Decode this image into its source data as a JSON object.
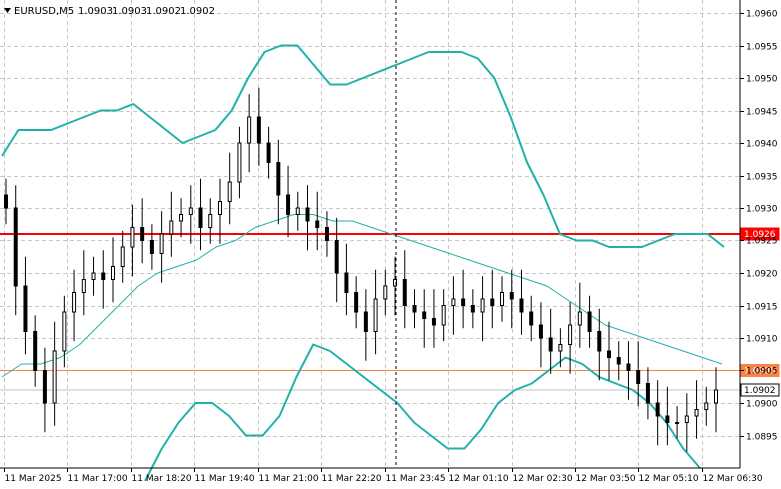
{
  "header": {
    "symbol": "EURUSD,M5",
    "open": "1.0903",
    "high": "1.0903",
    "low": "1.0902",
    "close": "1.0902"
  },
  "colors": {
    "background": "#ffffff",
    "grid": "#c8c8c8",
    "candle": "#000000",
    "bollinger": "#20b2aa",
    "resistance_line": "#ff0000",
    "level_line": "#ff8040",
    "bid_line": "#c0c0c0"
  },
  "chart_data": {
    "type": "candlestick",
    "y_range": [
      1.089,
      1.0962
    ],
    "y_ticks": [
      "1.0960",
      "1.0955",
      "1.0950",
      "1.0945",
      "1.0940",
      "1.0935",
      "1.0930",
      "1.0925",
      "1.0920",
      "1.0915",
      "1.0910",
      "1.0905",
      "1.0900",
      "1.0895"
    ],
    "x_ticks": [
      "11 Mar 2025",
      "11 Mar 17:00",
      "11 Mar 18:20",
      "11 Mar 19:40",
      "11 Mar 21:00",
      "11 Mar 22:20",
      "11 Mar 23:45",
      "12 Mar 01:10",
      "12 Mar 02:30",
      "12 Mar 03:50",
      "12 Mar 05:10",
      "12 Mar 06:30"
    ],
    "horizontal_levels": [
      {
        "label": "1.0926",
        "value": 1.0926,
        "style": "resistance"
      },
      {
        "label": "1.0905",
        "value": 1.0905,
        "style": "level"
      },
      {
        "label": "1.0902",
        "value": 1.0902,
        "style": "bid"
      }
    ],
    "series": [
      {
        "name": "upper",
        "values": [
          1.0938,
          1.0942,
          1.0942,
          1.0942,
          1.0943,
          1.0944,
          1.0945,
          1.0945,
          1.0946,
          1.0944,
          1.0942,
          1.094,
          1.0941,
          1.0942,
          1.0945,
          1.095,
          1.0954,
          1.0955,
          1.0955,
          1.0952,
          1.0949,
          1.0949,
          1.095,
          1.0951,
          1.0952,
          1.0953,
          1.0954,
          1.0954,
          1.0954,
          1.0953,
          1.095,
          1.0944,
          1.0937,
          1.0932,
          1.0926,
          1.0925,
          1.0925,
          1.0924,
          1.0924,
          1.0924,
          1.0925,
          1.0926,
          1.0926,
          1.0926,
          1.0924
        ]
      },
      {
        "name": "middle",
        "values": [
          1.0904,
          1.0906,
          1.0906,
          1.0907,
          1.0909,
          1.0912,
          1.0915,
          1.0918,
          1.092,
          1.0921,
          1.0922,
          1.0924,
          1.0925,
          1.0927,
          1.0928,
          1.0929,
          1.0929,
          1.0928,
          1.0928,
          1.0927,
          1.0926,
          1.0925,
          1.0924,
          1.0923,
          1.0922,
          1.0921,
          1.092,
          1.0919,
          1.0918,
          1.0916,
          1.0914,
          1.0912,
          1.0911,
          1.091,
          1.0909,
          1.0908,
          1.0907,
          1.0906
        ]
      },
      {
        "name": "lower",
        "values": [
          1.0888,
          1.0893,
          1.0897,
          1.09,
          1.09,
          1.0898,
          1.0895,
          1.0895,
          1.0898,
          1.0904,
          1.0909,
          1.0908,
          1.0906,
          1.0904,
          1.0902,
          1.09,
          1.0897,
          1.0895,
          1.0893,
          1.0893,
          1.0896,
          1.09,
          1.0902,
          1.0903,
          1.0905,
          1.0907,
          1.0906,
          1.0904,
          1.0903,
          1.0902,
          1.09,
          1.0897,
          1.0893,
          1.089
        ]
      },
      {
        "name": "close",
        "values": [
          1.093,
          1.0918,
          1.0911,
          1.0905,
          1.09,
          1.0908,
          1.0914,
          1.0917,
          1.0919,
          1.092,
          1.0919,
          1.0921,
          1.0924,
          1.0927,
          1.0925,
          1.0923,
          1.0926,
          1.0928,
          1.0929,
          1.093,
          1.0927,
          1.0929,
          1.0931,
          1.0934,
          1.094,
          1.0944,
          1.094,
          1.0937,
          1.0932,
          1.0929,
          1.093,
          1.0928,
          1.0927,
          1.0925,
          1.092,
          1.0917,
          1.0914,
          1.0911,
          1.0916,
          1.0918,
          1.0919,
          1.0915,
          1.0914,
          1.0913,
          1.0912,
          1.0915,
          1.0916,
          1.0915,
          1.0914,
          1.0916,
          1.0915,
          1.0917,
          1.0916,
          1.0914,
          1.0912,
          1.091,
          1.0908,
          1.0909,
          1.0912,
          1.0914,
          1.0911,
          1.0908,
          1.0907,
          1.0906,
          1.0905,
          1.0903,
          1.09,
          1.0898,
          1.0897,
          1.0897,
          1.0898,
          1.0899,
          1.09,
          1.0902
        ]
      }
    ]
  }
}
